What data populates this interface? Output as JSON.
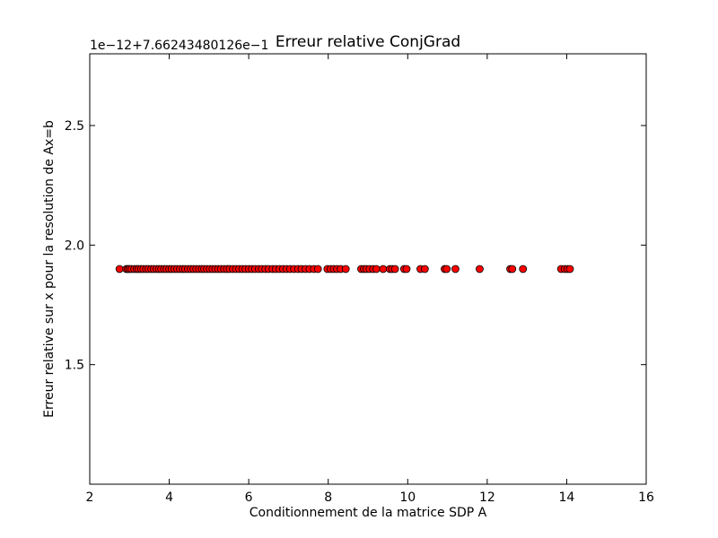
{
  "chart_data": {
    "type": "scatter",
    "title": "Erreur relative ConjGrad",
    "xlabel": "Conditionnement de la matrice SDP A",
    "ylabel": "Erreur relative sur x pour la resolution de Ax=b",
    "y_offset_label": "1e−12+7.66243480126e−1",
    "xlim": [
      2,
      16
    ],
    "ylim": [
      1.0,
      2.8
    ],
    "x_ticks": [
      2,
      4,
      6,
      8,
      10,
      12,
      14,
      16
    ],
    "x_tick_labels": [
      "2",
      "4",
      "6",
      "8",
      "10",
      "12",
      "14",
      "16"
    ],
    "y_ticks": [
      1.5,
      2.0,
      2.5
    ],
    "y_tick_labels": [
      "1.5",
      "2.0",
      "2.5"
    ],
    "grid": false,
    "marker": "circle",
    "marker_color": "#ff0000",
    "marker_edge_color": "#000000",
    "series": [
      {
        "x": [
          2.75,
          2.92,
          2.96,
          3.0,
          3.05,
          3.12,
          3.18,
          3.23,
          3.29,
          3.35,
          3.42,
          3.48,
          3.55,
          3.61,
          3.68,
          3.74,
          3.8,
          3.87,
          3.93,
          4.0,
          4.06,
          4.13,
          4.2,
          4.27,
          4.34,
          4.4,
          4.47,
          4.54,
          4.61,
          4.68,
          4.75,
          4.82,
          4.88,
          4.95,
          5.02,
          5.09,
          5.16,
          5.23,
          5.3,
          5.38,
          5.45,
          5.52,
          5.6,
          5.68,
          5.76,
          5.84,
          5.92,
          6.0,
          6.08,
          6.16,
          6.25,
          6.33,
          6.42,
          6.5,
          6.6,
          6.68,
          6.77,
          6.86,
          6.95,
          7.04,
          7.14,
          7.24,
          7.33,
          7.43,
          7.53,
          7.64,
          7.74,
          7.98,
          8.06,
          8.14,
          8.22,
          8.31,
          8.44,
          8.83,
          8.9,
          8.96,
          9.04,
          9.13,
          9.21,
          9.38,
          9.55,
          9.61,
          9.68,
          9.91,
          9.97,
          10.32,
          10.43,
          10.93,
          10.98,
          11.2,
          11.81,
          12.58,
          12.63,
          12.9,
          13.86,
          13.95,
          14.02,
          14.08
        ],
        "y": [
          1.9,
          1.9,
          1.9,
          1.9,
          1.9,
          1.9,
          1.9,
          1.9,
          1.9,
          1.9,
          1.9,
          1.9,
          1.9,
          1.9,
          1.9,
          1.9,
          1.9,
          1.9,
          1.9,
          1.9,
          1.9,
          1.9,
          1.9,
          1.9,
          1.9,
          1.9,
          1.9,
          1.9,
          1.9,
          1.9,
          1.9,
          1.9,
          1.9,
          1.9,
          1.9,
          1.9,
          1.9,
          1.9,
          1.9,
          1.9,
          1.9,
          1.9,
          1.9,
          1.9,
          1.9,
          1.9,
          1.9,
          1.9,
          1.9,
          1.9,
          1.9,
          1.9,
          1.9,
          1.9,
          1.9,
          1.9,
          1.9,
          1.9,
          1.9,
          1.9,
          1.9,
          1.9,
          1.9,
          1.9,
          1.9,
          1.9,
          1.9,
          1.9,
          1.9,
          1.9,
          1.9,
          1.9,
          1.9,
          1.9,
          1.9,
          1.9,
          1.9,
          1.9,
          1.9,
          1.9,
          1.9,
          1.9,
          1.9,
          1.9,
          1.9,
          1.9,
          1.9,
          1.9,
          1.9,
          1.9,
          1.9,
          1.9,
          1.9,
          1.9,
          1.9,
          1.9,
          1.9,
          1.9
        ]
      }
    ]
  }
}
